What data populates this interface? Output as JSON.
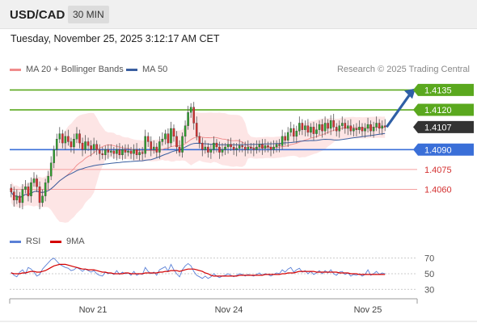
{
  "header": {
    "symbol": "USD/CAD",
    "timeframe": "30 MIN",
    "datetime": "Tuesday, November 25, 2025 3:12:17 AM CET",
    "copyright": "Research © 2025 Trading Central"
  },
  "legend": {
    "bollinger": {
      "label": "MA 20 + Bollinger Bands",
      "color": "#f08c8c"
    },
    "ma50": {
      "label": "MA 50",
      "color": "#3a5fa0"
    },
    "rsi": {
      "label": "RSI",
      "color": "#5b80d6"
    },
    "ma9": {
      "label": "9MA",
      "color": "#d40000"
    }
  },
  "colors": {
    "up": "#2e9e2e",
    "down": "#d43030",
    "resistance": "#5aa81e",
    "support": "#3a6fd8",
    "pivot_red": "#f4a0a0",
    "band_fill": "#fde0e0",
    "current": "#333333",
    "arrow": "#2f5fa6"
  },
  "chart_data": [
    {
      "type": "candlestick",
      "x_ticks": [
        "Nov 21",
        "Nov 24",
        "Nov 25"
      ],
      "ylim": [
        1.4025,
        1.4145
      ],
      "levels": [
        {
          "value": "1.4135",
          "kind": "resistance"
        },
        {
          "value": "1.4120",
          "kind": "resistance"
        },
        {
          "value": "1.4107",
          "kind": "current"
        },
        {
          "value": "1.4090",
          "kind": "support"
        },
        {
          "value": "1.4075",
          "kind": "pivot"
        },
        {
          "value": "1.4060",
          "kind": "pivot"
        }
      ],
      "close": [
        1.4058,
        1.4052,
        1.4055,
        1.405,
        1.406,
        1.4062,
        1.4055,
        1.4065,
        1.4068,
        1.4062,
        1.405,
        1.4055,
        1.4065,
        1.407,
        1.408,
        1.409,
        1.4098,
        1.4102,
        1.4095,
        1.41,
        1.4096,
        1.4092,
        1.4098,
        1.4102,
        1.4095,
        1.409,
        1.4096,
        1.4093,
        1.409,
        1.4094,
        1.409,
        1.4087,
        1.4086,
        1.409,
        1.4088,
        1.4089,
        1.4087,
        1.409,
        1.4086,
        1.409,
        1.4088,
        1.4089,
        1.4087,
        1.409,
        1.4086,
        1.4088,
        1.4087,
        1.41,
        1.4096,
        1.409,
        1.4092,
        1.4088,
        1.4096,
        1.4098,
        1.4102,
        1.4095,
        1.4106,
        1.41,
        1.4092,
        1.4088,
        1.41,
        1.4108,
        1.4118,
        1.4122,
        1.411,
        1.41,
        1.4095,
        1.409,
        1.4092,
        1.4088,
        1.409,
        1.4095,
        1.4092,
        1.4088,
        1.409,
        1.4092,
        1.4094,
        1.4092,
        1.409,
        1.4091,
        1.4093,
        1.4092,
        1.409,
        1.4092,
        1.4091,
        1.409,
        1.4092,
        1.4094,
        1.4091,
        1.4093,
        1.4092,
        1.409,
        1.4092,
        1.4094,
        1.4093,
        1.41,
        1.4097,
        1.4103,
        1.4106,
        1.41,
        1.4104,
        1.411,
        1.4105,
        1.4108,
        1.4103,
        1.4107,
        1.4102,
        1.4105,
        1.4109,
        1.4104,
        1.411,
        1.4106,
        1.4112,
        1.4107,
        1.4104,
        1.4108,
        1.411,
        1.4106,
        1.4108,
        1.4104,
        1.4106,
        1.4105,
        1.4107,
        1.4104,
        1.4106,
        1.4109,
        1.4104,
        1.4107,
        1.411,
        1.4106,
        1.4108,
        1.4107
      ],
      "series": [
        {
          "name": "MA 20 + Bollinger Bands"
        },
        {
          "name": "MA 50"
        }
      ]
    },
    {
      "type": "line",
      "y_ticks": [
        "70",
        "50",
        "30"
      ],
      "ylim": [
        22,
        80
      ],
      "series": [
        {
          "name": "RSI",
          "values": [
            52,
            48,
            46,
            52,
            55,
            50,
            58,
            56,
            52,
            47,
            49,
            56,
            60,
            64,
            68,
            70,
            66,
            62,
            60,
            58,
            57,
            54,
            55,
            58,
            56,
            53,
            56,
            54,
            52,
            54,
            50,
            48,
            47,
            52,
            50,
            51,
            49,
            54,
            49,
            52,
            50,
            51,
            48,
            53,
            48,
            50,
            49,
            58,
            53,
            50,
            52,
            48,
            55,
            57,
            59,
            53,
            62,
            55,
            50,
            46,
            55,
            60,
            63,
            60,
            53,
            48,
            46,
            44,
            47,
            44,
            46,
            50,
            47,
            45,
            47,
            48,
            50,
            48,
            46,
            48,
            50,
            49,
            47,
            49,
            48,
            47,
            49,
            51,
            48,
            50,
            49,
            47,
            49,
            51,
            50,
            55,
            52,
            56,
            58,
            52,
            55,
            57,
            52,
            54,
            50,
            53,
            49,
            51,
            54,
            50,
            54,
            51,
            55,
            50,
            48,
            52,
            53,
            49,
            51,
            47,
            49,
            48,
            50,
            47,
            49,
            55,
            48,
            50,
            53,
            49,
            51,
            50
          ]
        },
        {
          "name": "9MA",
          "values": [
            51,
            50,
            50,
            50,
            51,
            51,
            52,
            53,
            53,
            52,
            52,
            53,
            54,
            56,
            58,
            60,
            61,
            62,
            62,
            62,
            61,
            60,
            59,
            58,
            57,
            56,
            56,
            55,
            55,
            55,
            54,
            53,
            52,
            52,
            51,
            51,
            50,
            50,
            50,
            50,
            51,
            51,
            50,
            50,
            50,
            50,
            50,
            51,
            51,
            51,
            51,
            51,
            52,
            52,
            53,
            53,
            54,
            54,
            54,
            53,
            54,
            55,
            56,
            56,
            56,
            55,
            54,
            53,
            51,
            50,
            48,
            47,
            47,
            47,
            47,
            47,
            47,
            47,
            47,
            47,
            48,
            48,
            48,
            48,
            48,
            48,
            48,
            48,
            48,
            49,
            49,
            49,
            49,
            49,
            49,
            50,
            50,
            51,
            51,
            51,
            52,
            53,
            53,
            53,
            53,
            53,
            53,
            52,
            52,
            52,
            52,
            52,
            52,
            52,
            52,
            51,
            51,
            51,
            51,
            50,
            50,
            50,
            49,
            49,
            49,
            49,
            49,
            49,
            49,
            49,
            49,
            49
          ]
        }
      ]
    }
  ]
}
